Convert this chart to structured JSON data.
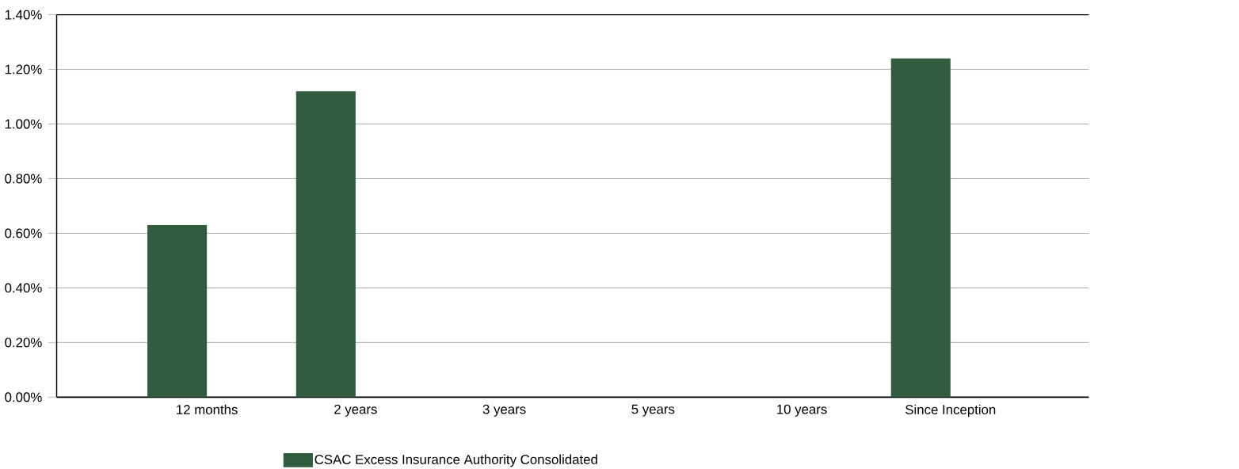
{
  "chart_data": {
    "type": "bar",
    "categories": [
      "12 months",
      "2 years",
      "3 years",
      "5 years",
      "10 years",
      "Since Inception"
    ],
    "series": [
      {
        "name": "CSAC Excess Insurance Authority Consolidated",
        "color": "#325c3e",
        "values": [
          0.63,
          1.12,
          null,
          null,
          null,
          1.24
        ]
      }
    ],
    "ylim": [
      0,
      1.4
    ],
    "yticks": [
      {
        "value": 0,
        "label": "0.00%"
      },
      {
        "value": 0.2,
        "label": "0.20%"
      },
      {
        "value": 0.4,
        "label": "0.40%"
      },
      {
        "value": 0.6,
        "label": "0.60%"
      },
      {
        "value": 0.8,
        "label": "0.80%"
      },
      {
        "value": 1.0,
        "label": "1.00%"
      },
      {
        "value": 1.2,
        "label": "1.20%"
      },
      {
        "value": 1.4,
        "label": "1.40%"
      }
    ],
    "grid": "y",
    "legend": "bottom"
  }
}
